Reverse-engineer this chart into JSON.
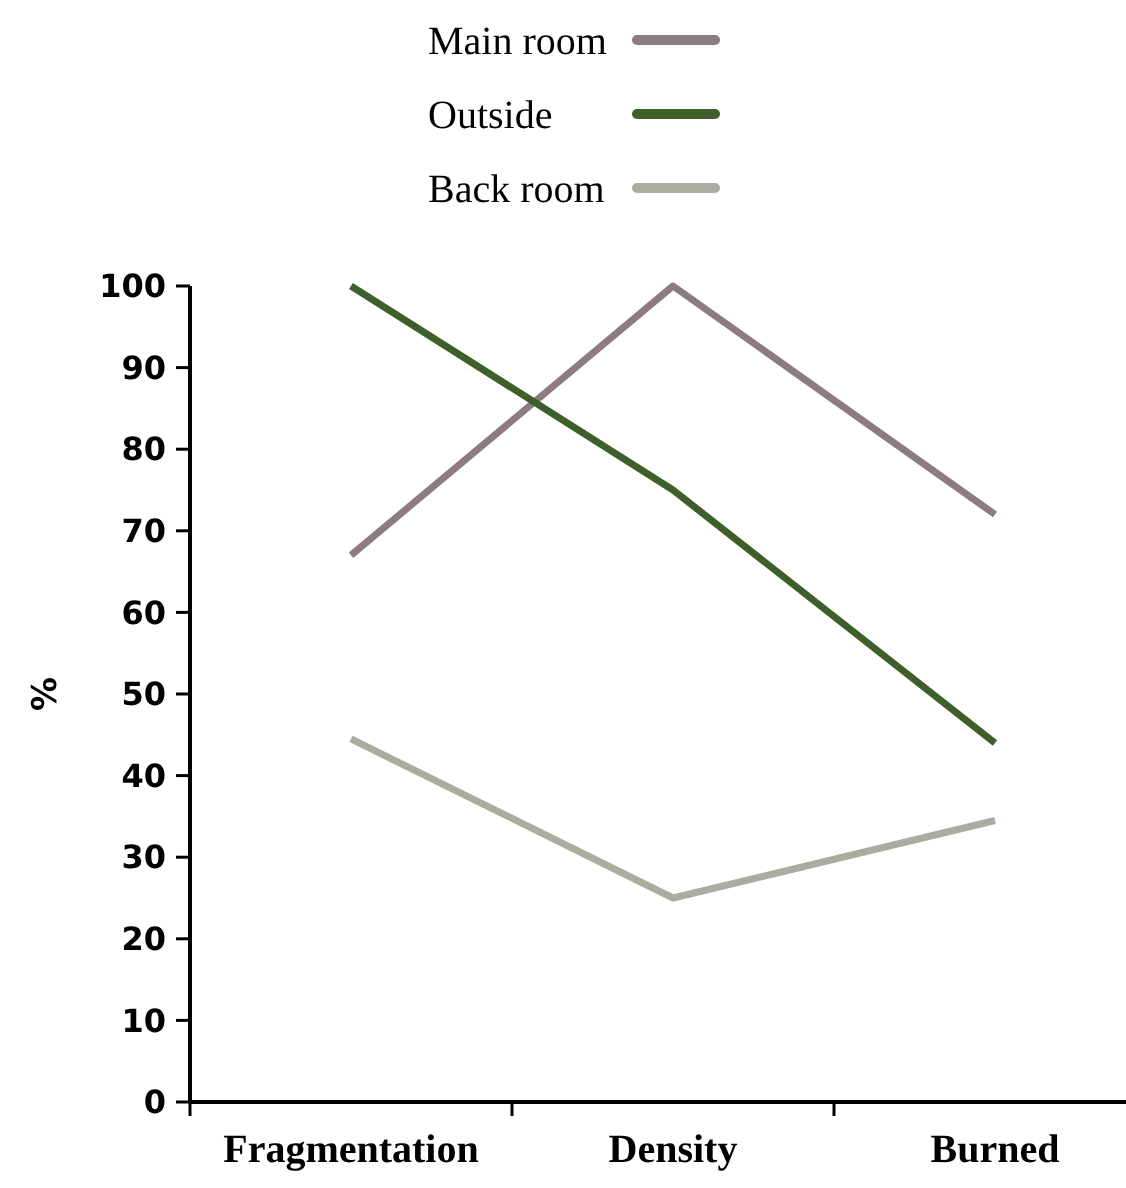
{
  "chart_data": {
    "type": "line",
    "ylabel": "%",
    "categories": [
      "Fragmentation",
      "Density",
      "Burned"
    ],
    "series": [
      {
        "name": "Main room",
        "color": "#8c7b83",
        "values": [
          67,
          100,
          72
        ]
      },
      {
        "name": "Outside",
        "color": "#3e5f2a",
        "values": [
          100,
          75,
          44
        ]
      },
      {
        "name": "Back room",
        "color": "#abab9f",
        "values": [
          44.5,
          25,
          34.5
        ]
      }
    ],
    "ylim": [
      0,
      100
    ],
    "yticks": [
      0,
      10,
      20,
      30,
      40,
      50,
      60,
      70,
      80,
      90,
      100
    ],
    "grid": false,
    "legend": "top",
    "marker": "none",
    "line_style": "solid"
  }
}
